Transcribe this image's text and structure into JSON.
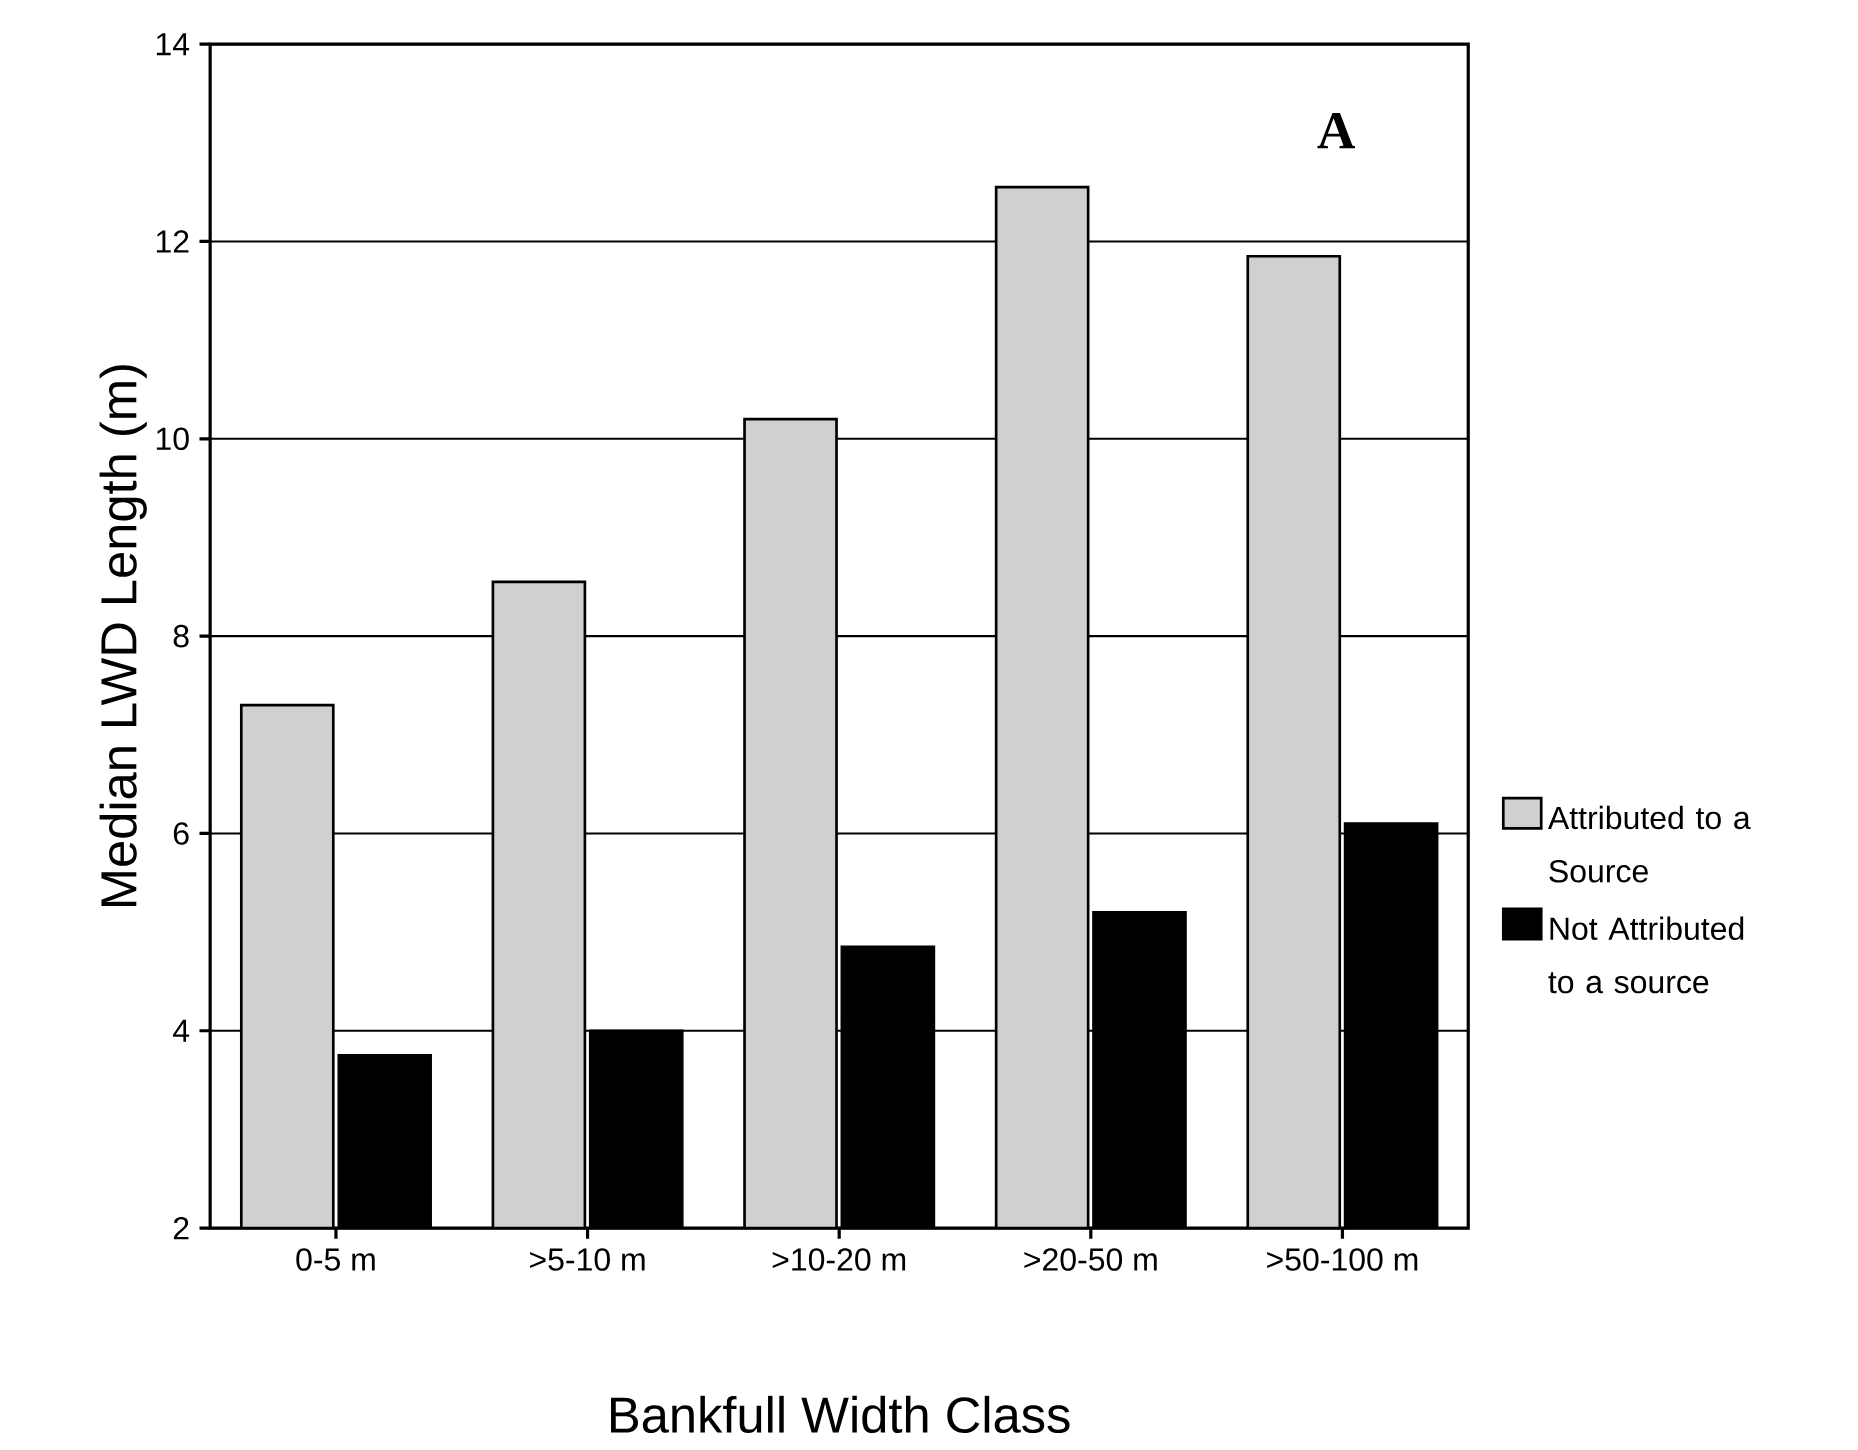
{
  "chart_data": {
    "type": "bar",
    "xlabel": "Bankfull Width Class",
    "ylabel": "Median LWD Length (m)",
    "categories": [
      "0-5 m",
      ">5-10 m",
      ">10-20 m",
      ">20-50 m",
      ">50-100 m"
    ],
    "series": [
      {
        "name": "Attributed to a Source",
        "color": "#d0d0d0",
        "values": [
          7.3,
          8.55,
          10.2,
          12.55,
          11.85
        ]
      },
      {
        "name": "Not Attributed to a source",
        "color": "#000000",
        "values": [
          3.75,
          4.0,
          4.85,
          5.2,
          6.1
        ]
      }
    ],
    "ylim": [
      2,
      14
    ],
    "yticks": [
      2,
      4,
      6,
      8,
      10,
      12,
      14
    ],
    "grid": "y",
    "legend": "right",
    "annotations": [
      "A"
    ]
  }
}
